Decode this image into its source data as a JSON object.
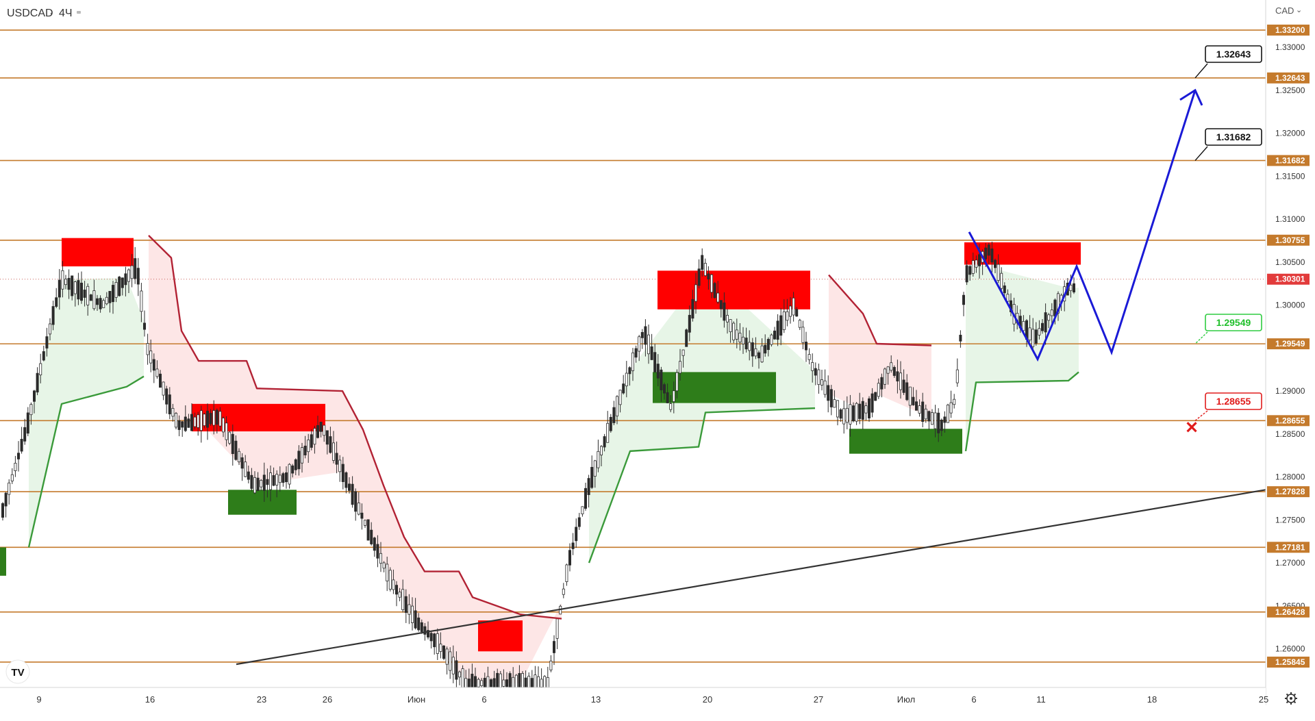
{
  "header": {
    "symbol": "USDCAD",
    "separator": "·",
    "timeframe": "4Ч"
  },
  "axis_controls": {
    "currency": "CAD",
    "currency_caret": "⌄",
    "settings_icon": "gear-icon"
  },
  "logo": {
    "text": "TV"
  },
  "colors": {
    "level_line": "#c47a2c",
    "supply_zone": "#ff0000",
    "demand_zone": "#2e7d1a",
    "trend_down": "#b22234",
    "trend_up": "#3a9a3a",
    "fill_down": "#fde2e2",
    "fill_up": "#e3f3e3",
    "projection": "#1a1ad6",
    "trendline": "#333333",
    "candle": "#2b2b2b"
  },
  "chart_data": {
    "type": "candlestick",
    "title": "USDCAD · 4Ч",
    "y_axis": {
      "ylim": [
        1.2555,
        1.3355
      ],
      "tick_labels": [
        "1.33000",
        "1.32500",
        "1.32000",
        "1.31500",
        "1.31000",
        "1.30500",
        "1.30000",
        "1.29000",
        "1.28500",
        "1.28000",
        "1.27500",
        "1.27000",
        "1.26500",
        "1.26000"
      ]
    },
    "x_axis": {
      "tick_labels": [
        "9",
        "16",
        "23",
        "26",
        "Июн",
        "6",
        "13",
        "20",
        "27",
        "Июл",
        "6",
        "11",
        "18",
        "25"
      ]
    },
    "levels": [
      "1.33200",
      "1.32643",
      "1.31682",
      "1.30755",
      "1.29549",
      "1.28655",
      "1.27828",
      "1.27181",
      "1.26428",
      "1.25845"
    ],
    "current_price": "1.30301",
    "callouts": [
      {
        "value": "1.32643",
        "style": "black"
      },
      {
        "value": "1.31682",
        "style": "black"
      },
      {
        "value": "1.29549",
        "style": "green"
      },
      {
        "value": "1.28655",
        "style": "red"
      }
    ],
    "supply_zones": [
      {
        "label": "supply-zone-1",
        "top": 1.3078,
        "bottom": 1.3045
      },
      {
        "label": "supply-zone-2",
        "top": 1.304,
        "bottom": 1.2995
      },
      {
        "label": "supply-zone-3",
        "top": 1.2885,
        "bottom": 1.2853
      },
      {
        "label": "supply-zone-4",
        "top": 1.3073,
        "bottom": 1.3047
      },
      {
        "label": "supply-zone-5",
        "top": 1.2633,
        "bottom": 1.2597
      }
    ],
    "demand_zones": [
      {
        "label": "demand-zone-1",
        "top": 1.2922,
        "bottom": 1.2886
      },
      {
        "label": "demand-zone-2",
        "top": 1.2785,
        "bottom": 1.2756
      },
      {
        "label": "demand-zone-3",
        "top": 1.2856,
        "bottom": 1.2827
      },
      {
        "label": "demand-zone-4",
        "top": 1.2718,
        "bottom": 1.2685
      }
    ],
    "projection_path": [
      1.3085,
      1.2937,
      1.3045,
      1.2945,
      1.325
    ],
    "invalidation_marker": {
      "price": 1.2858,
      "symbol": "✕"
    },
    "trendline": {
      "from": 1.2582,
      "to": 1.2785
    }
  }
}
